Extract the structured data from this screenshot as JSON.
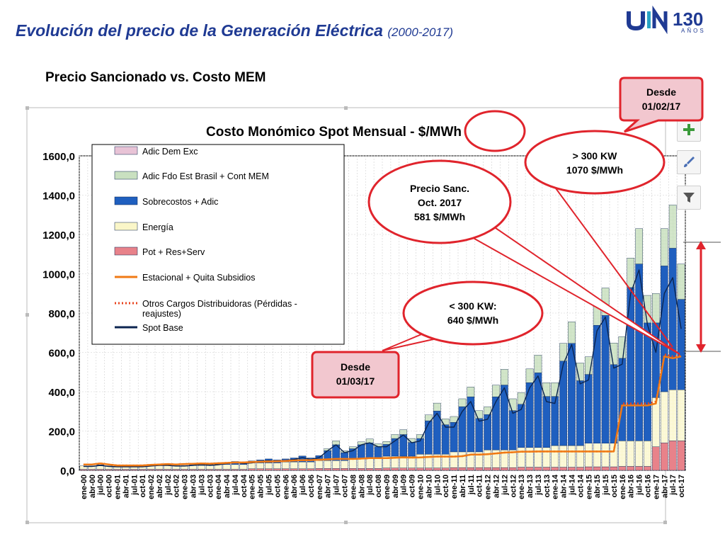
{
  "page": {
    "title": "Evolución del precio de la Generación Eléctrica",
    "title_years": "(2000-2017)",
    "subtitle": "Precio Sancionado vs. Costo MEM",
    "logo_anniversary": "130",
    "logo_anniversary_word": "AÑOS"
  },
  "callouts": {
    "desde_0102": [
      "Desde",
      "01/02/17"
    ],
    "gt300": [
      "> 300 KW",
      "1070 $/MWh"
    ],
    "precio_sanc": [
      "Precio Sanc.",
      "Oct. 2017",
      "581 $/MWh"
    ],
    "lt300": [
      "< 300 KW:",
      "640 $/MWh"
    ],
    "desde_0103": [
      "Desde",
      "01/03/17"
    ]
  },
  "toolbar": [
    "plus-icon",
    "brush-icon",
    "filter-icon"
  ],
  "colors": {
    "title": "#1f3a93",
    "adic_dem_exc": "#e8c3d6",
    "adic_fdo": "#c9e0c0",
    "sobrecostos": "#1f5fbf",
    "energia": "#faf6c8",
    "pot": "#e8828a",
    "estacional": "#f07a14",
    "otros_cargos": "#e8431e",
    "spot_base": "#0c2550",
    "callout_border": "#e0242c"
  },
  "chart_data": {
    "type": "bar",
    "title": "Costo Monómico Spot Mensual - $/MWh",
    "ylim": [
      0,
      1600
    ],
    "yticks": [
      "0,0",
      "200,0",
      "400,0",
      "600,0",
      "800,0",
      "1000,0",
      "1200,0",
      "1400,0",
      "1600,0"
    ],
    "grid": true,
    "legend_position": "top-left",
    "stacked": true,
    "months_per_category": 3,
    "categories": [
      "ene-00",
      "abr-00",
      "jul-00",
      "oct-00",
      "ene-01",
      "abr-01",
      "jul-01",
      "oct-01",
      "ene-02",
      "abr-02",
      "jul-02",
      "oct-02",
      "ene-03",
      "abr-03",
      "jul-03",
      "oct-03",
      "ene-04",
      "abr-04",
      "jul-04",
      "oct-04",
      "ene-05",
      "abr-05",
      "jul-05",
      "oct-05",
      "ene-06",
      "abr-06",
      "jul-06",
      "oct-06",
      "ene-07",
      "abr-07",
      "jul-07",
      "oct-07",
      "ene-08",
      "abr-08",
      "jul-08",
      "oct-08",
      "ene-09",
      "abr-09",
      "jul-09",
      "oct-09",
      "ene-10",
      "abr-10",
      "jul-10",
      "oct-10",
      "ene-11",
      "abr-11",
      "jul-11",
      "oct-11",
      "ene-12",
      "abr-12",
      "jul-12",
      "oct-12",
      "ene-13",
      "abr-13",
      "jul-13",
      "oct-13",
      "ene-14",
      "abr-14",
      "jul-14",
      "oct-14",
      "ene-15",
      "abr-15",
      "jul-15",
      "oct-15",
      "ene-16",
      "abr-16",
      "jul-16",
      "oct-16",
      "ene-17",
      "abr-17",
      "jul-17",
      "oct-17"
    ],
    "series": [
      {
        "name": "Adic Dem Exc",
        "kind": "bar",
        "values": [
          0,
          0,
          0,
          0,
          0,
          0,
          0,
          0,
          0,
          0,
          0,
          0,
          0,
          0,
          0,
          0,
          0,
          0,
          0,
          0,
          0,
          0,
          0,
          0,
          0,
          0,
          0,
          0,
          0,
          0,
          0,
          0,
          0,
          0,
          0,
          0,
          0,
          0,
          0,
          0,
          0,
          0,
          0,
          0,
          0,
          0,
          0,
          0,
          0,
          0,
          0,
          0,
          0,
          0,
          0,
          0,
          0,
          0,
          0,
          0,
          0,
          0,
          0,
          0,
          0,
          0,
          0,
          0,
          0,
          0,
          0,
          0
        ]
      },
      {
        "name": "Adic Fdo Est Brasil + Cont MEM",
        "kind": "bar",
        "values": [
          0,
          0,
          0,
          0,
          0,
          0,
          0,
          0,
          0,
          0,
          0,
          0,
          0,
          0,
          0,
          0,
          0,
          0,
          0,
          0,
          0,
          0,
          0,
          0,
          0,
          0,
          0,
          0,
          0,
          10,
          20,
          10,
          10,
          15,
          20,
          15,
          15,
          20,
          25,
          20,
          20,
          30,
          40,
          30,
          30,
          40,
          50,
          40,
          40,
          60,
          80,
          60,
          60,
          70,
          90,
          70,
          70,
          90,
          110,
          90,
          90,
          110,
          140,
          110,
          110,
          150,
          180,
          140,
          150,
          190,
          220,
          180
        ]
      },
      {
        "name": "Sobrecostos + Adic",
        "kind": "bar",
        "values": [
          0,
          0,
          5,
          0,
          0,
          0,
          0,
          0,
          0,
          5,
          5,
          0,
          0,
          5,
          10,
          5,
          5,
          10,
          15,
          10,
          10,
          15,
          20,
          15,
          15,
          20,
          30,
          20,
          25,
          50,
          80,
          40,
          50,
          70,
          80,
          60,
          60,
          90,
          110,
          70,
          80,
          170,
          220,
          150,
          150,
          230,
          280,
          170,
          180,
          270,
          330,
          200,
          220,
          330,
          380,
          260,
          250,
          430,
          520,
          330,
          350,
          600,
          650,
          400,
          420,
          780,
          900,
          600,
          380,
          640,
          720,
          460
        ]
      },
      {
        "name": "Energía",
        "kind": "bar",
        "values": [
          18,
          18,
          18,
          18,
          15,
          15,
          15,
          15,
          20,
          20,
          20,
          20,
          20,
          20,
          20,
          20,
          25,
          25,
          25,
          25,
          30,
          30,
          30,
          30,
          35,
          35,
          35,
          35,
          40,
          40,
          40,
          40,
          50,
          50,
          50,
          50,
          60,
          60,
          60,
          60,
          70,
          70,
          70,
          70,
          80,
          80,
          80,
          80,
          90,
          90,
          90,
          90,
          100,
          100,
          100,
          100,
          110,
          110,
          110,
          110,
          120,
          120,
          120,
          120,
          130,
          130,
          130,
          130,
          250,
          260,
          260,
          260
        ]
      },
      {
        "name": "Pot + Res+Serv",
        "kind": "bar",
        "values": [
          5,
          5,
          5,
          5,
          5,
          5,
          5,
          5,
          5,
          5,
          5,
          5,
          5,
          5,
          5,
          5,
          5,
          5,
          5,
          5,
          8,
          8,
          8,
          8,
          8,
          8,
          8,
          8,
          10,
          10,
          10,
          10,
          10,
          10,
          10,
          10,
          12,
          12,
          12,
          12,
          12,
          12,
          12,
          12,
          14,
          14,
          14,
          14,
          14,
          14,
          14,
          14,
          16,
          16,
          16,
          16,
          16,
          16,
          16,
          16,
          18,
          18,
          18,
          18,
          20,
          20,
          20,
          20,
          120,
          140,
          150,
          150
        ]
      },
      {
        "name": "Estacional + Quita Subsidios",
        "kind": "line",
        "values": [
          30,
          30,
          35,
          30,
          25,
          25,
          25,
          25,
          28,
          30,
          32,
          30,
          32,
          33,
          35,
          34,
          36,
          38,
          40,
          40,
          42,
          44,
          45,
          46,
          48,
          50,
          52,
          52,
          54,
          56,
          58,
          58,
          58,
          60,
          62,
          62,
          62,
          64,
          66,
          65,
          66,
          68,
          70,
          70,
          70,
          72,
          80,
          80,
          82,
          86,
          90,
          92,
          95,
          95,
          96,
          96,
          96,
          96,
          96,
          96,
          96,
          96,
          96,
          96,
          330,
          330,
          330,
          330,
          340,
          580,
          570,
          580
        ]
      },
      {
        "name": "Otros Cargos Distribuidoras (Pérdidas - reajustes)",
        "kind": "dotted-line",
        "values": [
          30,
          30,
          35,
          30,
          25,
          25,
          25,
          25,
          28,
          30,
          32,
          30,
          32,
          33,
          35,
          34,
          36,
          38,
          40,
          40,
          42,
          44,
          45,
          46,
          48,
          50,
          52,
          52,
          54,
          56,
          58,
          58,
          58,
          60,
          62,
          62,
          62,
          64,
          66,
          65,
          66,
          68,
          70,
          70,
          70,
          72,
          80,
          80,
          82,
          86,
          90,
          92,
          95,
          95,
          96,
          96,
          96,
          96,
          96,
          96,
          96,
          96,
          96,
          96,
          340,
          340,
          340,
          340,
          350,
          590,
          580,
          585
        ]
      },
      {
        "name": "Spot Base",
        "kind": "line",
        "values": [
          20,
          20,
          25,
          20,
          18,
          18,
          18,
          18,
          22,
          25,
          25,
          22,
          22,
          25,
          30,
          25,
          28,
          35,
          40,
          35,
          38,
          45,
          50,
          45,
          50,
          55,
          65,
          55,
          65,
          100,
          130,
          90,
          100,
          130,
          140,
          120,
          120,
          150,
          180,
          140,
          150,
          240,
          290,
          220,
          220,
          300,
          350,
          250,
          260,
          350,
          420,
          290,
          310,
          420,
          480,
          350,
          340,
          540,
          640,
          440,
          460,
          710,
          780,
          520,
          540,
          900,
          1020,
          740,
          600,
          900,
          980,
          720
        ]
      }
    ]
  }
}
